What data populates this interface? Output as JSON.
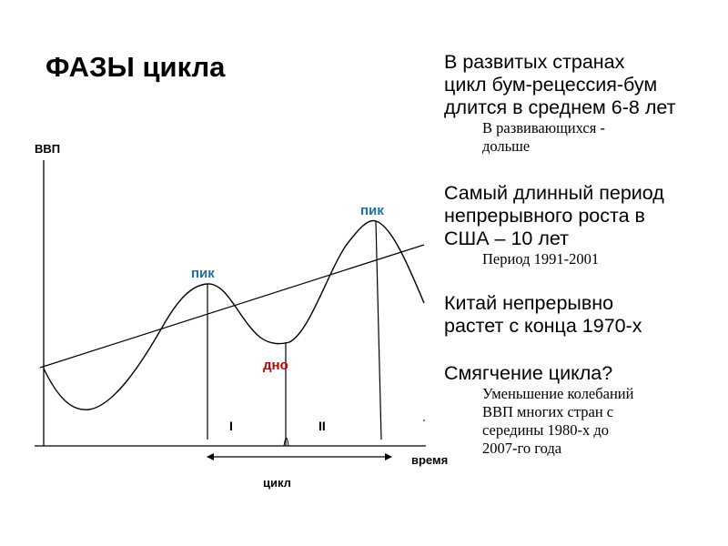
{
  "slide": {
    "title": "ФАЗЫ цикла"
  },
  "diagram": {
    "y_axis_label": "ВВП",
    "x_axis_label": "время",
    "peak_label_1": "пик",
    "peak_label_2": "пик",
    "trough_label": "дно",
    "phase_1_label": "I",
    "phase_2_label": "II",
    "cycle_label": "цикл",
    "colors": {
      "peak": "#1f6fa5",
      "trough": "#c00000",
      "line": "#000000"
    }
  },
  "notes": [
    {
      "main": [
        "В развитых странах",
        "цикл бум-рецессия-бум",
        "длится в среднем 6-8 лет"
      ],
      "sub": [
        "В развивающихся -",
        "дольше"
      ]
    },
    {
      "main": [
        "Самый длинный период",
        "непрерывного роста в",
        "США – 10 лет"
      ],
      "sub": [
        "Период 1991-2001"
      ]
    },
    {
      "main": [
        "Китай непрерывно",
        "растет с конца 1970-х"
      ],
      "sub": []
    },
    {
      "main": [
        "Смягчение цикла?"
      ],
      "sub": [
        "Уменьшение колебаний",
        "ВВП многих стран с",
        "середины 1980-х до",
        "2007-го года"
      ]
    }
  ]
}
